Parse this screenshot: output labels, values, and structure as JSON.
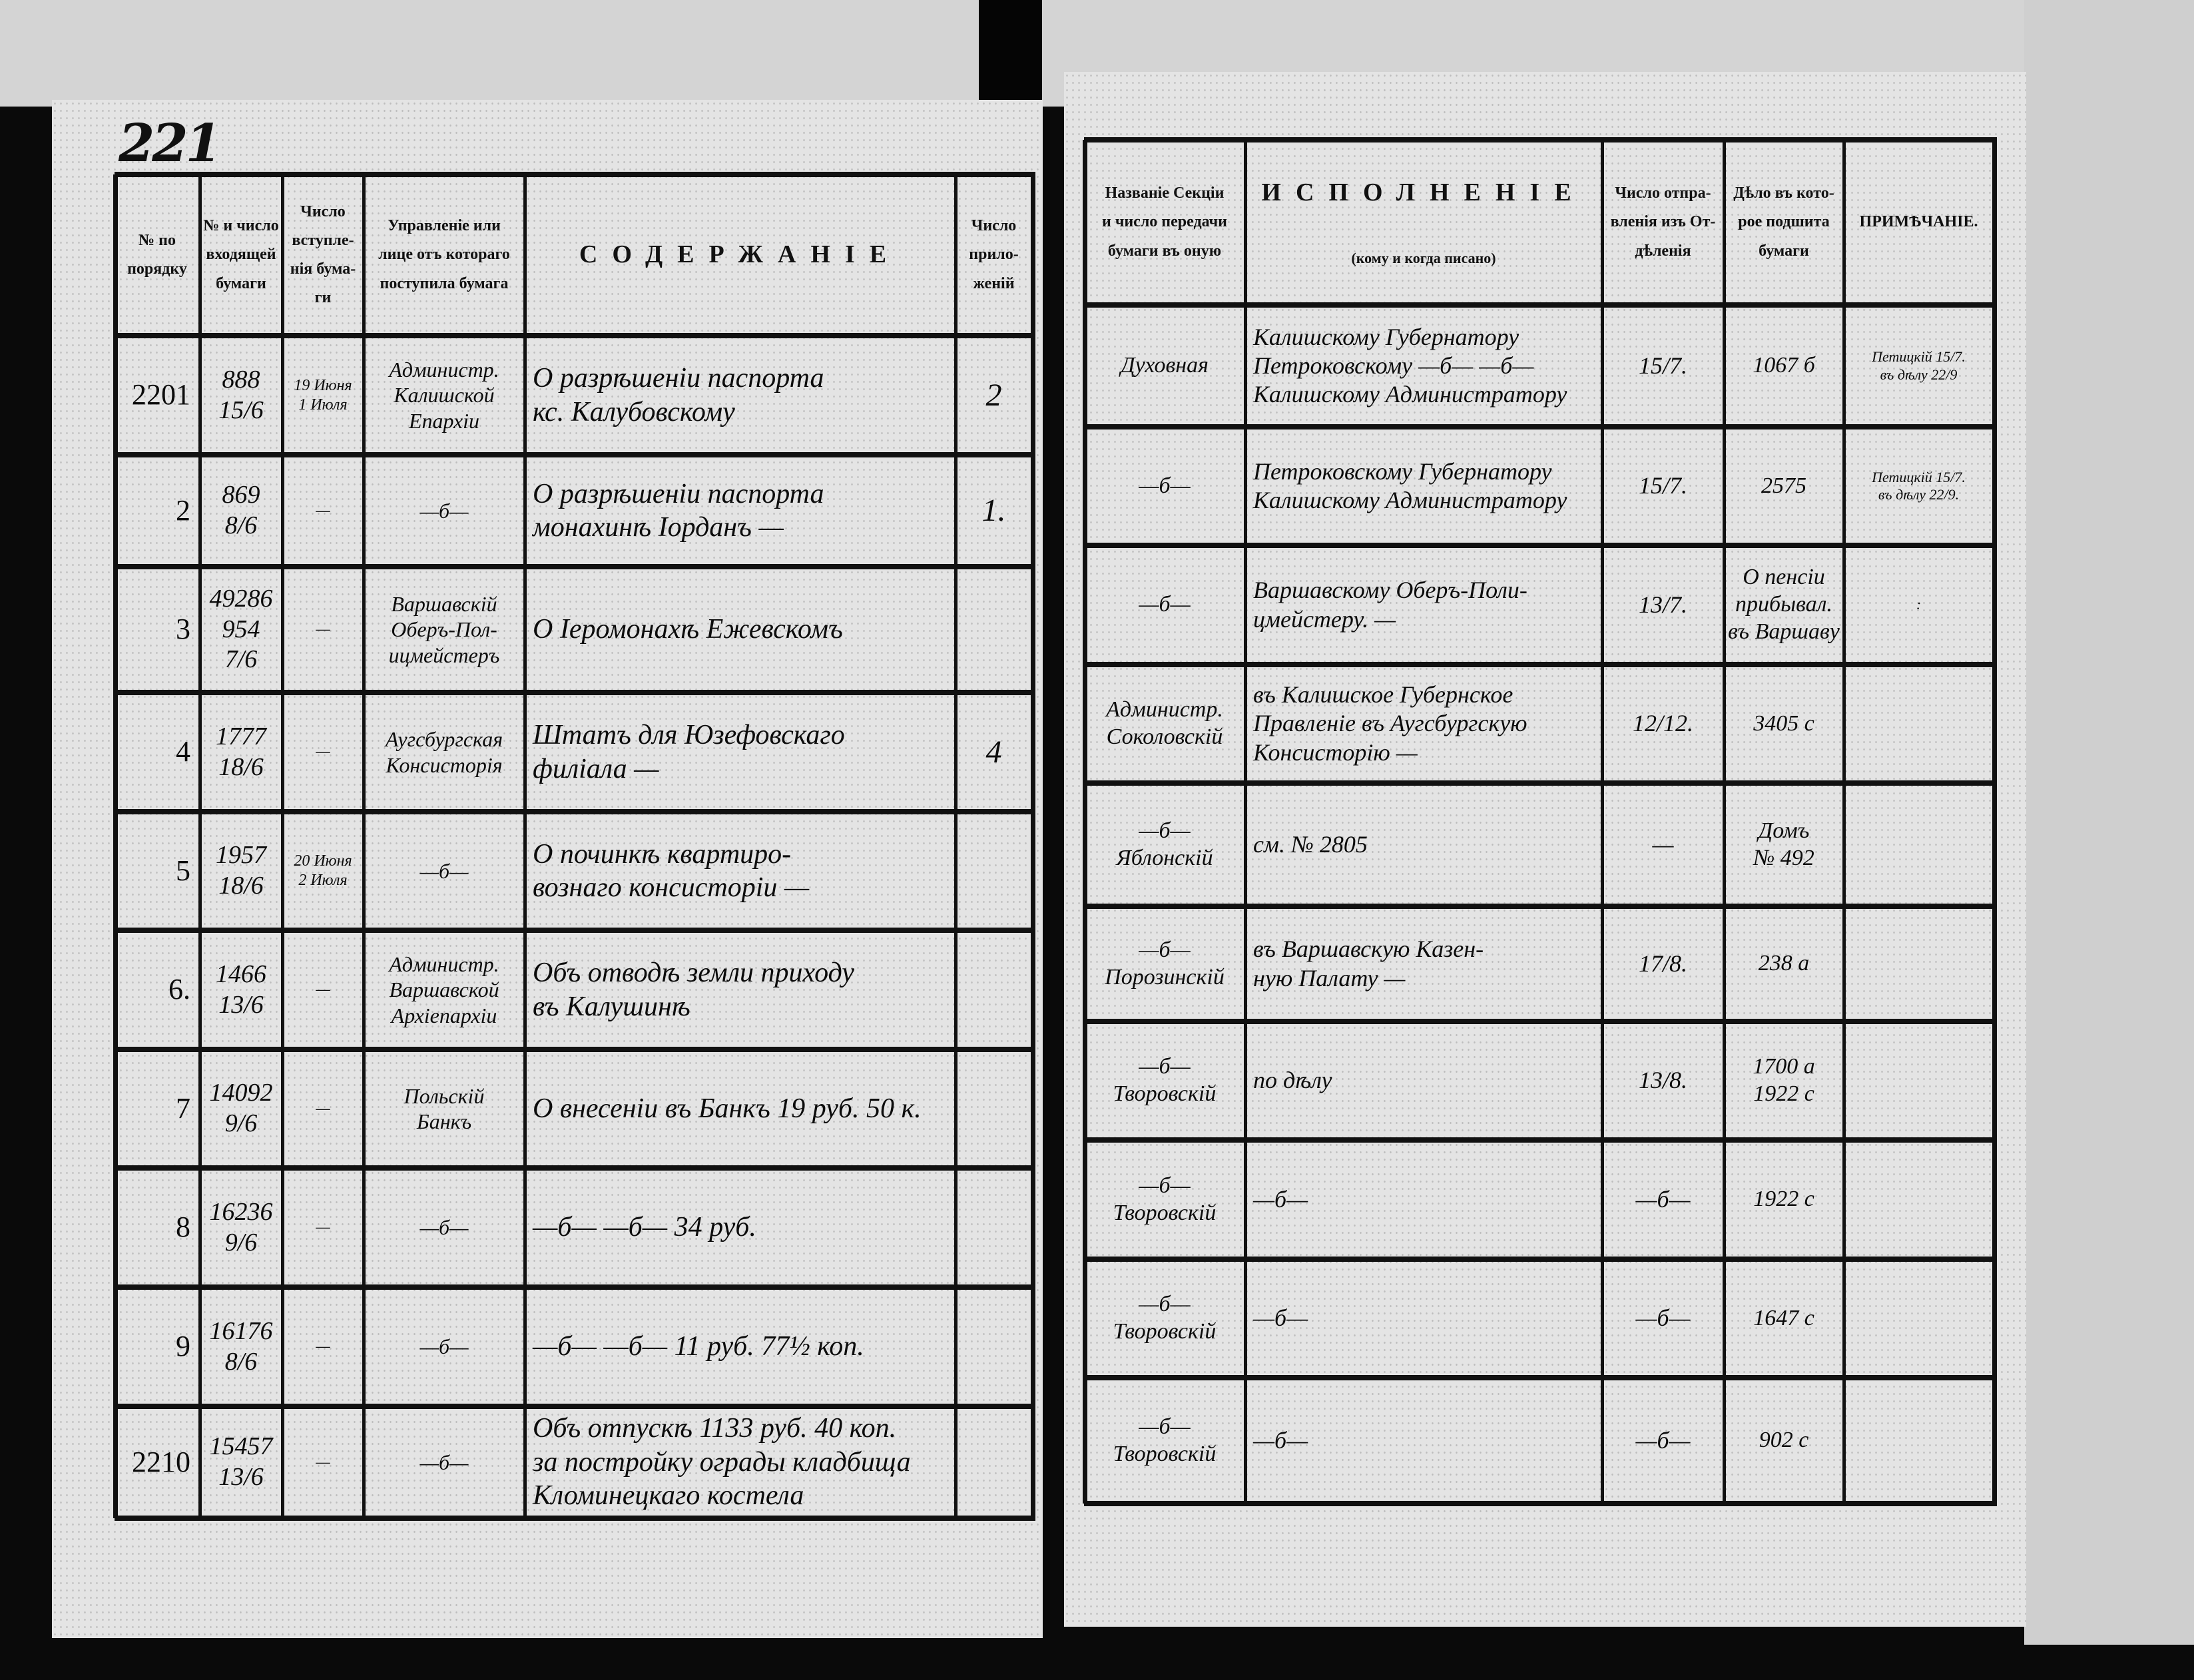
{
  "page_number": "221",
  "left_table": {
    "headers": [
      "№ по\nпорядку",
      "№ и число\nвходящей\nбумаги",
      "Число\nвступле-\nнія бума-\nги",
      "Управленіе или\nлице отъ котораго\nпоступила бумага",
      "СОДЕРЖАНІЕ",
      "Число\nприло-\nженій"
    ],
    "rows": [
      {
        "no": "2201",
        "incoming": "888\n15/6",
        "arrival": "19 Июня\n1 Июля",
        "from": "Администр.\nКалишской\nЕпархіи",
        "content": "О разрѣшеніи паспорта\nкс. Калубовскому",
        "attachments": "2"
      },
      {
        "no": "2",
        "incoming": "869\n8/6",
        "arrival": "—",
        "from": "—б—",
        "content": "О разрѣшеніи паспорта\nмонахинѣ Іорданъ —",
        "attachments": "1."
      },
      {
        "no": "3",
        "incoming": "49286\n954\n7/6",
        "arrival": "—",
        "from": "Варшавскій\nОберъ-Пол-\nицмейстеръ",
        "content": "О Іеромонахѣ Ежевскомъ",
        "attachments": ""
      },
      {
        "no": "4",
        "incoming": "1777\n18/6",
        "arrival": "—",
        "from": "Аугсбургская\nКонсисторія",
        "content": "Штатъ для Юзефовскаго\nфиліала —",
        "attachments": "4"
      },
      {
        "no": "5",
        "incoming": "1957\n18/6",
        "arrival": "20 Июня\n2 Июля",
        "from": "—б—",
        "content": "О починкѣ квартиро-\nвознаго консисторіи —",
        "attachments": ""
      },
      {
        "no": "6.",
        "incoming": "1466\n13/6",
        "arrival": "—",
        "from": "Администр.\nВаршавской\nАрхіепархіи",
        "content": "Объ отводѣ земли приходу\nвъ Калушинѣ",
        "attachments": ""
      },
      {
        "no": "7",
        "incoming": "14092\n9/6",
        "arrival": "—",
        "from": "Польскій\nБанкъ",
        "content": "О внесеніи въ Банкъ 19 руб. 50 к.",
        "attachments": ""
      },
      {
        "no": "8",
        "incoming": "16236\n9/6",
        "arrival": "—",
        "from": "—б—",
        "content": "—б— —б— 34 руб.",
        "attachments": ""
      },
      {
        "no": "9",
        "incoming": "16176\n8/6",
        "arrival": "—",
        "from": "—б—",
        "content": "—б— —б— 11 руб. 77½ коп.",
        "attachments": ""
      },
      {
        "no": "2210",
        "incoming": "15457\n13/6",
        "arrival": "—",
        "from": "—б—",
        "content": "Объ отпускѣ 1133 руб. 40 коп.\nза постройку ограды кладбища\nКломинецкаго костела",
        "attachments": ""
      }
    ]
  },
  "right_table": {
    "headers": [
      "Названіе Секціи\nи число передачи\nбумаги въ оную",
      "ИСПОЛНЕНІЕ",
      "Число отпра-\nвленія изъ От-\nдѣленія",
      "Дѣло въ кото-\nрое подшита\nбумаги",
      "ПРИМѢЧАНІЕ."
    ],
    "execution_subtitle": "(кому и когда писано)",
    "rows": [
      {
        "section": "Духовная",
        "execution": "Калишскому Губернатору\nПетроковскому —б— —б—\nКалишскому Администратору",
        "sent": "15/7.",
        "case": "1067 б",
        "note": "Петицкій 15/7.\nвъ дѣлу 22/9"
      },
      {
        "section": "—б—",
        "execution": "Петроковскому Губернатору\nКалишскому Администратору",
        "sent": "15/7.",
        "case": "2575",
        "note": "Петицкій 15/7.\nвъ дѣлу 22/9."
      },
      {
        "section": "—б—",
        "execution": "Варшавскому Оберъ-Поли-\nцмейстеру. —",
        "sent": "13/7.",
        "case": "О пенсіи\nприбывал.\nвъ Варшаву",
        "note": ":"
      },
      {
        "section": "Администр.\nСоколовскій",
        "execution": "въ Калишское Губернское\nПравленіе въ Аугсбургскую\nКонсисторію —",
        "sent": "12/12.",
        "case": "3405 с",
        "note": ""
      },
      {
        "section": "—б—\nЯблонскій",
        "execution": "см. № 2805",
        "sent": "—",
        "case": "Домъ\n№ 492",
        "note": ""
      },
      {
        "section": "—б—\nПорозинскій",
        "execution": "въ Варшавскую Казен-\nную Палату —",
        "sent": "17/8.",
        "case": "238 а",
        "note": ""
      },
      {
        "section": "—б—\nТворовскій",
        "execution": "по дѣлу",
        "sent": "13/8.",
        "case": "1700 а\n1922 с",
        "note": ""
      },
      {
        "section": "—б—\nТворовскій",
        "execution": "—б—",
        "sent": "—б—",
        "case": "1922 с",
        "note": ""
      },
      {
        "section": "—б—\nТворовскій",
        "execution": "—б—",
        "sent": "—б—",
        "case": "1647 с",
        "note": ""
      },
      {
        "section": "—б—\nТворовскій",
        "execution": "—б—",
        "sent": "—б—",
        "case": "902 с",
        "note": ""
      }
    ]
  },
  "colors": {
    "paper": "#e4e4e4",
    "ink": "#111111",
    "background": "#0a0a0a"
  }
}
